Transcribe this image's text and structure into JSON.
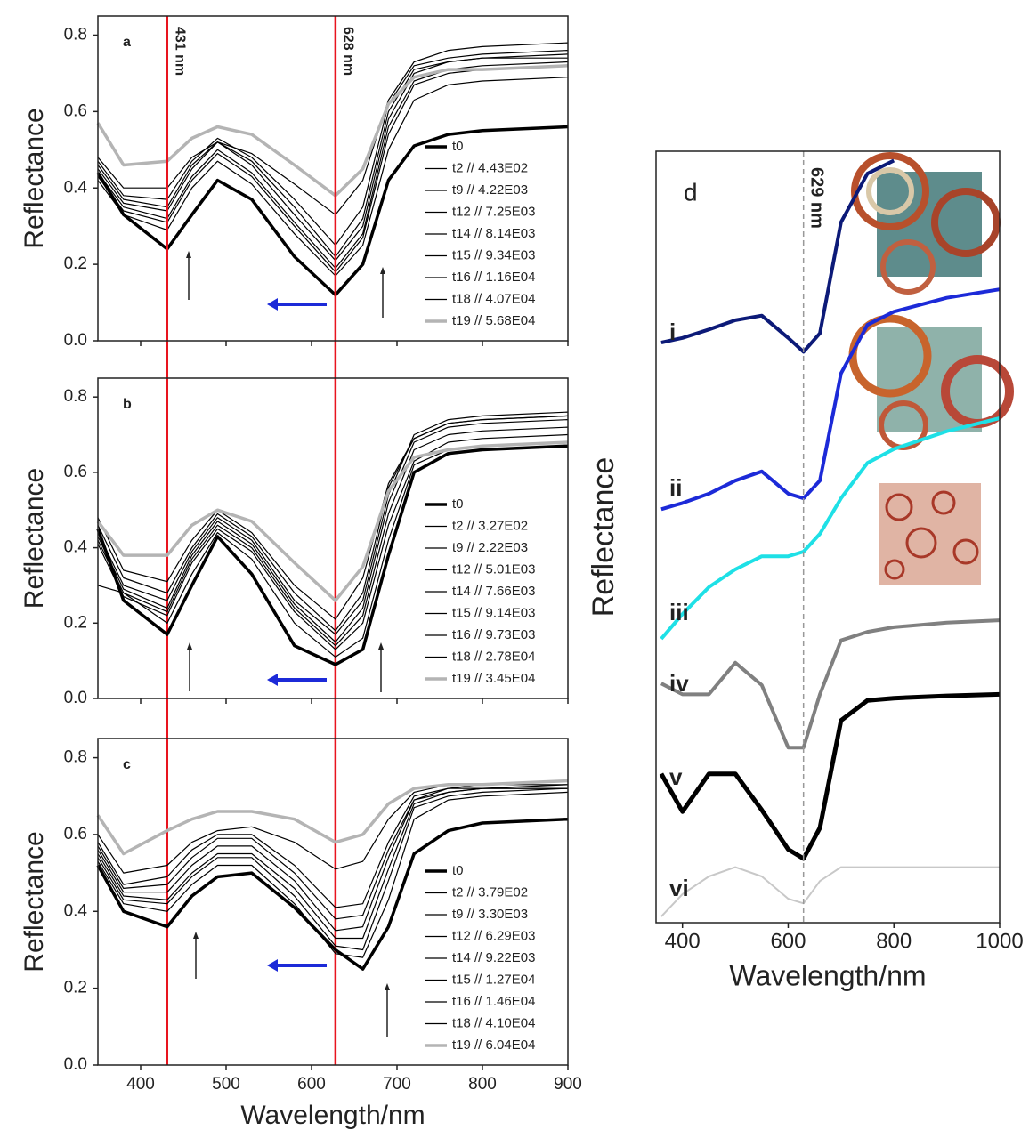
{
  "chart_data": [
    {
      "type": "line",
      "panel_label": "a",
      "ylabel": "Reflectance",
      "xlim": [
        350,
        900
      ],
      "ylim": [
        0,
        0.85
      ],
      "yticks": [
        {
          "value": 0,
          "label": "0.0"
        },
        0.2,
        0.4,
        0.6,
        0.8
      ],
      "legend": "lower right",
      "vlines": [
        {
          "value": 431,
          "label": "431 nm",
          "color": "#e8141e"
        },
        {
          "value": 628,
          "label": "628 nm",
          "color": "#e8141e"
        }
      ],
      "x": [
        350,
        380,
        431,
        460,
        490,
        530,
        580,
        628,
        660,
        690,
        720,
        760,
        800,
        900
      ],
      "series": [
        {
          "name": "t0",
          "color": "#000000",
          "line_width": 3.5,
          "values": [
            0.44,
            0.33,
            0.24,
            0.33,
            0.42,
            0.37,
            0.22,
            0.12,
            0.2,
            0.42,
            0.51,
            0.54,
            0.55,
            0.56
          ]
        },
        {
          "name": "t2 // 4.43E02",
          "color": "#000000",
          "line_width": 1.2,
          "values": [
            0.48,
            0.4,
            0.4,
            0.48,
            0.52,
            0.49,
            0.41,
            0.33,
            0.42,
            0.63,
            0.73,
            0.76,
            0.77,
            0.78
          ]
        },
        {
          "name": "t9 // 4.22E03",
          "color": "#000000",
          "line_width": 1.2,
          "values": [
            0.47,
            0.38,
            0.37,
            0.47,
            0.53,
            0.48,
            0.37,
            0.25,
            0.35,
            0.62,
            0.72,
            0.74,
            0.75,
            0.76
          ]
        },
        {
          "name": "t12 // 7.25E03",
          "color": "#000000",
          "line_width": 1.2,
          "values": [
            0.46,
            0.37,
            0.35,
            0.46,
            0.52,
            0.47,
            0.35,
            0.22,
            0.32,
            0.6,
            0.71,
            0.73,
            0.74,
            0.75
          ]
        },
        {
          "name": "t14 // 8.14E03",
          "color": "#000000",
          "line_width": 1.2,
          "values": [
            0.45,
            0.36,
            0.34,
            0.45,
            0.52,
            0.46,
            0.33,
            0.21,
            0.3,
            0.58,
            0.7,
            0.73,
            0.74,
            0.74
          ]
        },
        {
          "name": "t15 // 9.34E03",
          "color": "#000000",
          "line_width": 1.2,
          "values": [
            0.44,
            0.35,
            0.32,
            0.43,
            0.5,
            0.44,
            0.31,
            0.19,
            0.28,
            0.56,
            0.68,
            0.71,
            0.72,
            0.73
          ]
        },
        {
          "name": "t16 // 1.16E04",
          "color": "#000000",
          "line_width": 1.2,
          "values": [
            0.43,
            0.34,
            0.31,
            0.42,
            0.49,
            0.43,
            0.3,
            0.18,
            0.27,
            0.54,
            0.67,
            0.7,
            0.71,
            0.72
          ]
        },
        {
          "name": "t18 // 4.07E04",
          "color": "#000000",
          "line_width": 1.2,
          "values": [
            0.42,
            0.33,
            0.29,
            0.4,
            0.47,
            0.41,
            0.28,
            0.17,
            0.25,
            0.5,
            0.63,
            0.67,
            0.68,
            0.69
          ]
        },
        {
          "name": "t19 // 5.68E04",
          "color": "#b4b4b4",
          "line_width": 3.5,
          "values": [
            0.57,
            0.46,
            0.47,
            0.53,
            0.56,
            0.54,
            0.46,
            0.38,
            0.45,
            0.62,
            0.69,
            0.71,
            0.71,
            0.72
          ]
        }
      ]
    },
    {
      "type": "line",
      "panel_label": "b",
      "ylabel": "Reflectance",
      "xlim": [
        350,
        900
      ],
      "ylim": [
        0,
        0.85
      ],
      "yticks": [
        {
          "value": 0,
          "label": "0.0"
        },
        0.2,
        0.4,
        0.6,
        0.8
      ],
      "legend": "lower right",
      "x": [
        350,
        380,
        431,
        460,
        490,
        530,
        580,
        628,
        660,
        690,
        720,
        760,
        800,
        900
      ],
      "series": [
        {
          "name": "t0",
          "color": "#000000",
          "line_width": 3.5,
          "values": [
            0.45,
            0.26,
            0.17,
            0.3,
            0.43,
            0.33,
            0.14,
            0.09,
            0.13,
            0.38,
            0.6,
            0.65,
            0.66,
            0.67
          ]
        },
        {
          "name": "t2 // 3.27E02",
          "color": "#000000",
          "line_width": 1.2,
          "values": [
            0.48,
            0.34,
            0.31,
            0.42,
            0.5,
            0.44,
            0.3,
            0.21,
            0.32,
            0.57,
            0.69,
            0.73,
            0.74,
            0.75
          ]
        },
        {
          "name": "t9 // 2.22E03",
          "color": "#000000",
          "line_width": 1.2,
          "values": [
            0.46,
            0.32,
            0.28,
            0.4,
            0.49,
            0.43,
            0.28,
            0.18,
            0.28,
            0.56,
            0.69,
            0.73,
            0.74,
            0.75
          ]
        },
        {
          "name": "t12 // 5.01E03",
          "color": "#000000",
          "line_width": 1.2,
          "values": [
            0.44,
            0.3,
            0.26,
            0.39,
            0.48,
            0.42,
            0.26,
            0.17,
            0.26,
            0.54,
            0.7,
            0.74,
            0.75,
            0.76
          ]
        },
        {
          "name": "t14 // 7.66E03",
          "color": "#000000",
          "line_width": 1.2,
          "values": [
            0.43,
            0.29,
            0.24,
            0.38,
            0.47,
            0.41,
            0.25,
            0.15,
            0.24,
            0.52,
            0.68,
            0.72,
            0.73,
            0.74
          ]
        },
        {
          "name": "t15 // 9.14E03",
          "color": "#000000",
          "line_width": 1.2,
          "values": [
            0.42,
            0.28,
            0.23,
            0.37,
            0.46,
            0.4,
            0.24,
            0.14,
            0.22,
            0.49,
            0.66,
            0.7,
            0.71,
            0.72
          ]
        },
        {
          "name": "t16 // 9.73E03",
          "color": "#000000",
          "line_width": 1.2,
          "values": [
            0.41,
            0.27,
            0.22,
            0.36,
            0.45,
            0.39,
            0.23,
            0.13,
            0.2,
            0.46,
            0.63,
            0.68,
            0.69,
            0.7
          ]
        },
        {
          "name": "t18 // 2.78E04",
          "color": "#000000",
          "line_width": 1.2,
          "values": [
            0.3,
            0.28,
            0.2,
            0.33,
            0.44,
            0.37,
            0.2,
            0.11,
            0.16,
            0.42,
            0.62,
            0.66,
            0.67,
            0.68
          ]
        },
        {
          "name": "t19 // 3.45E04",
          "color": "#b4b4b4",
          "line_width": 3.5,
          "values": [
            0.47,
            0.38,
            0.38,
            0.46,
            0.5,
            0.47,
            0.36,
            0.26,
            0.35,
            0.55,
            0.64,
            0.66,
            0.67,
            0.68
          ]
        }
      ]
    },
    {
      "type": "line",
      "panel_label": "c",
      "ylabel": "Reflectance",
      "xlabel": "Wavelength/nm",
      "xlim": [
        350,
        900
      ],
      "ylim": [
        0,
        0.85
      ],
      "xticks": [
        400,
        500,
        600,
        700,
        800,
        900
      ],
      "yticks": [
        {
          "value": 0,
          "label": "0.0"
        },
        0.2,
        0.4,
        0.6,
        0.8
      ],
      "legend": "lower right",
      "x": [
        350,
        380,
        431,
        460,
        490,
        530,
        580,
        628,
        660,
        690,
        720,
        760,
        800,
        900
      ],
      "series": [
        {
          "name": "t0",
          "color": "#000000",
          "line_width": 3.5,
          "values": [
            0.52,
            0.4,
            0.36,
            0.44,
            0.49,
            0.5,
            0.41,
            0.3,
            0.25,
            0.36,
            0.55,
            0.61,
            0.63,
            0.64
          ]
        },
        {
          "name": "t2 // 3.79E02",
          "color": "#000000",
          "line_width": 1.2,
          "values": [
            0.6,
            0.5,
            0.52,
            0.58,
            0.61,
            0.62,
            0.58,
            0.51,
            0.53,
            0.64,
            0.71,
            0.73,
            0.73,
            0.74
          ]
        },
        {
          "name": "t9 // 3.30E03",
          "color": "#000000",
          "line_width": 1.2,
          "values": [
            0.58,
            0.47,
            0.49,
            0.56,
            0.6,
            0.6,
            0.52,
            0.41,
            0.42,
            0.58,
            0.7,
            0.72,
            0.73,
            0.73
          ]
        },
        {
          "name": "t12 // 6.29E03",
          "color": "#000000",
          "line_width": 1.2,
          "values": [
            0.57,
            0.46,
            0.47,
            0.54,
            0.59,
            0.59,
            0.5,
            0.38,
            0.39,
            0.56,
            0.69,
            0.72,
            0.72,
            0.73
          ]
        },
        {
          "name": "t14 // 9.22E03",
          "color": "#000000",
          "line_width": 1.2,
          "values": [
            0.56,
            0.45,
            0.45,
            0.52,
            0.57,
            0.57,
            0.48,
            0.35,
            0.36,
            0.54,
            0.69,
            0.71,
            0.72,
            0.72
          ]
        },
        {
          "name": "t15 // 1.27E04",
          "color": "#000000",
          "line_width": 1.2,
          "values": [
            0.55,
            0.44,
            0.43,
            0.5,
            0.55,
            0.55,
            0.46,
            0.33,
            0.33,
            0.51,
            0.68,
            0.71,
            0.72,
            0.72
          ]
        },
        {
          "name": "t16 // 1.46E04",
          "color": "#000000",
          "line_width": 1.2,
          "values": [
            0.54,
            0.43,
            0.42,
            0.49,
            0.54,
            0.54,
            0.44,
            0.31,
            0.3,
            0.48,
            0.67,
            0.7,
            0.71,
            0.72
          ]
        },
        {
          "name": "t18 // 4.10E04",
          "color": "#000000",
          "line_width": 1.2,
          "values": [
            0.53,
            0.42,
            0.4,
            0.47,
            0.52,
            0.52,
            0.42,
            0.29,
            0.28,
            0.43,
            0.64,
            0.69,
            0.7,
            0.71
          ]
        },
        {
          "name": "t19 // 6.04E04",
          "color": "#b4b4b4",
          "line_width": 3.5,
          "values": [
            0.65,
            0.55,
            0.61,
            0.64,
            0.66,
            0.66,
            0.64,
            0.58,
            0.6,
            0.68,
            0.72,
            0.73,
            0.73,
            0.74
          ]
        }
      ]
    },
    {
      "type": "line",
      "panel_label": "d",
      "ylabel": "Reflectance",
      "xlabel": "Wavelength/nm",
      "xlim": [
        350,
        1000
      ],
      "ylim": [
        0,
        1
      ],
      "xticks": [
        400,
        600,
        800,
        1000
      ],
      "vlines": [
        {
          "value": 629,
          "label": "629 nm",
          "color": "#999999",
          "dashed": true
        }
      ],
      "x": [
        360,
        400,
        450,
        500,
        550,
        600,
        629,
        660,
        700,
        750,
        800,
        900,
        1000
      ],
      "series": [
        {
          "name": "i",
          "color": "#0c1a78",
          "line_width": 4,
          "values": [
            0.752,
            0.758,
            0.769,
            0.781,
            0.787,
            0.758,
            0.74,
            0.764,
            0.908,
            0.971,
            0.988,
            null,
            null
          ]
        },
        {
          "name": "ii",
          "color": "#1c2ad8",
          "line_width": 4,
          "values": [
            0.536,
            0.544,
            0.556,
            0.573,
            0.585,
            0.556,
            0.55,
            0.573,
            0.712,
            0.775,
            0.792,
            0.81,
            0.821
          ]
        },
        {
          "name": "iii",
          "color": "#1ee0e6",
          "line_width": 4,
          "values": [
            0.368,
            0.4,
            0.435,
            0.458,
            0.475,
            0.475,
            0.481,
            0.504,
            0.55,
            0.596,
            0.614,
            0.637,
            0.654
          ]
        },
        {
          "name": "iv",
          "color": "#808080",
          "line_width": 4,
          "values": [
            0.31,
            0.296,
            0.296,
            0.337,
            0.308,
            0.227,
            0.227,
            0.296,
            0.366,
            0.377,
            0.383,
            0.389,
            0.392
          ]
        },
        {
          "name": "v",
          "color": "#000000",
          "line_width": 5,
          "values": [
            0.193,
            0.144,
            0.193,
            0.193,
            0.146,
            0.095,
            0.083,
            0.123,
            0.262,
            0.288,
            0.291,
            0.294,
            0.296
          ]
        },
        {
          "name": "vi",
          "color": "#c8c8c8",
          "line_width": 2,
          "values": [
            0.008,
            0.037,
            0.06,
            0.072,
            0.06,
            0.031,
            0.025,
            0.054,
            0.072,
            0.072,
            0.072,
            0.072,
            0.072
          ]
        }
      ]
    }
  ]
}
